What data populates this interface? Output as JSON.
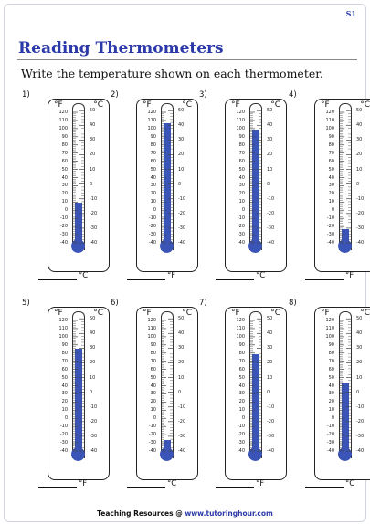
{
  "sheet_code": "S1",
  "title": "Reading Thermometers",
  "instructions": "Write the temperature shown on each thermometer.",
  "units": {
    "fahrenheit": "°F",
    "celsius": "°C"
  },
  "scale": {
    "fahrenheit_labels": [
      "120",
      "110",
      "100",
      "90",
      "80",
      "70",
      "60",
      "50",
      "40",
      "30",
      "20",
      "10",
      "0",
      "-10",
      "-20",
      "-30",
      "-40"
    ],
    "celsius_labels": [
      "50",
      "40",
      "30",
      "20",
      "10",
      "0",
      "-10",
      "-20",
      "-30",
      "-40"
    ]
  },
  "footer": {
    "prefix": "Teaching Resources @ ",
    "site": "www.tutoringhour.com"
  },
  "colors": {
    "accent": "#2b3aa8",
    "mercury": "#3b54b8"
  },
  "thermometers": [
    {
      "number": "1)",
      "level_f": 10,
      "answer_unit": "°C"
    },
    {
      "number": "2)",
      "level_f": 108,
      "answer_unit": "°F"
    },
    {
      "number": "3)",
      "level_f": 100,
      "answer_unit": "°C"
    },
    {
      "number": "4)",
      "level_f": -22,
      "answer_unit": "°F"
    },
    {
      "number": "5)",
      "level_f": 86,
      "answer_unit": "°F"
    },
    {
      "number": "6)",
      "level_f": -26,
      "answer_unit": "°C"
    },
    {
      "number": "7)",
      "level_f": 80,
      "answer_unit": "°F"
    },
    {
      "number": "8)",
      "level_f": 44,
      "answer_unit": "°C"
    }
  ]
}
